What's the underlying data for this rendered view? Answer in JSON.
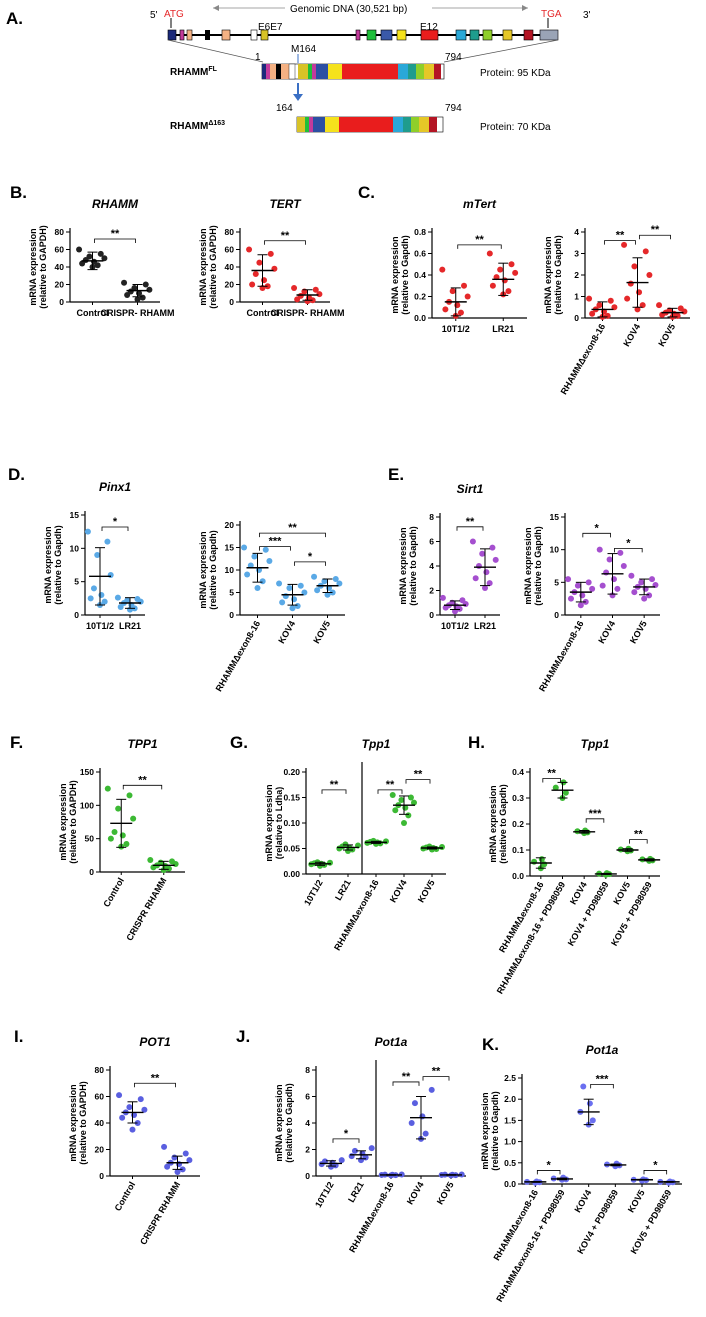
{
  "figure": {
    "panel_a": {
      "label": "A.",
      "five_prime": "5'",
      "three_prime": "3'",
      "start_codon": "ATG",
      "stop_codon": "TGA",
      "genomic_label": "Genomic DNA (30,521 bp)",
      "exon_labels": [
        "E6E7",
        "E12"
      ],
      "m164_label": "M164",
      "fl_name": "RHAMM",
      "fl_sup": "FL",
      "fl_start": "1",
      "fl_end": "794",
      "fl_protein": "Protein: 95 KDa",
      "d_name": "RHAMM",
      "d_sup": "Δ163",
      "d_start": "164",
      "d_end": "794",
      "d_protein": "Protein: 70 KDa",
      "colors": {
        "gene_line": "#000000",
        "arrow_blue": "#3a6fc4",
        "start_red": "#e5282a"
      }
    }
  },
  "chart_data": [
    {
      "id": "B1",
      "panel": "B.",
      "type": "scatter",
      "title": "RHAMM",
      "ylabel": "mRNA expression (relative to GAPDH)",
      "ylim": [
        0,
        80
      ],
      "yticks": [
        0,
        20,
        40,
        60,
        80
      ],
      "categories": [
        "Control",
        "CRISPR- RHAMM"
      ],
      "color": "#222222",
      "groups": [
        {
          "mean": 47,
          "sd": 10,
          "points": [
            40,
            42,
            44,
            46,
            48,
            50,
            52,
            55,
            60
          ]
        },
        {
          "mean": 13,
          "sd": 7,
          "points": [
            3,
            5,
            8,
            10,
            12,
            14,
            16,
            20,
            22
          ]
        }
      ],
      "brackets": [
        {
          "from": 0,
          "to": 1,
          "y": 72,
          "label": "**"
        }
      ]
    },
    {
      "id": "B2",
      "type": "scatter",
      "title": "TERT",
      "ylabel": "mRNA expression (relative to GAPDH)",
      "ylim": [
        0,
        80
      ],
      "yticks": [
        0,
        20,
        40,
        60,
        80
      ],
      "categories": [
        "Control",
        "CRISPR- RHAMM"
      ],
      "color": "#e5282a",
      "groups": [
        {
          "mean": 36,
          "sd": 18,
          "points": [
            16,
            18,
            20,
            25,
            32,
            38,
            45,
            55,
            60
          ]
        },
        {
          "mean": 8,
          "sd": 6,
          "points": [
            1,
            2,
            3,
            5,
            7,
            9,
            12,
            14,
            16
          ]
        }
      ],
      "brackets": [
        {
          "from": 0,
          "to": 1,
          "y": 70,
          "label": "**"
        }
      ]
    },
    {
      "id": "C1",
      "panel": "C.",
      "type": "scatter",
      "title": "mTert",
      "ylabel": "mRNA expression (relative to Gapdh)",
      "ylim": [
        0,
        0.8
      ],
      "yticks": [
        0.0,
        0.2,
        0.4,
        0.6,
        0.8
      ],
      "categories": [
        "10T1/2",
        "LR21"
      ],
      "color": "#e5282a",
      "groups": [
        {
          "mean": 0.15,
          "sd": 0.13,
          "points": [
            0.02,
            0.05,
            0.08,
            0.12,
            0.15,
            0.2,
            0.25,
            0.3,
            0.45
          ]
        },
        {
          "mean": 0.36,
          "sd": 0.15,
          "points": [
            0.22,
            0.25,
            0.3,
            0.35,
            0.38,
            0.42,
            0.45,
            0.5,
            0.6
          ]
        }
      ],
      "brackets": [
        {
          "from": 0,
          "to": 1,
          "y": 0.68,
          "label": "**"
        }
      ]
    },
    {
      "id": "C2",
      "type": "scatter",
      "ylabel": "mRNA expression (relative to Gapdh)",
      "ylim": [
        0,
        4
      ],
      "yticks": [
        0,
        1,
        2,
        3,
        4
      ],
      "categories": [
        "RHAMMΔexon8-16",
        "KOV4",
        "KOV5"
      ],
      "color": "#e5282a",
      "groups": [
        {
          "mean": 0.4,
          "sd": 0.35,
          "points": [
            0.05,
            0.1,
            0.2,
            0.3,
            0.4,
            0.5,
            0.6,
            0.8,
            0.9
          ]
        },
        {
          "mean": 1.65,
          "sd": 1.15,
          "points": [
            0.4,
            0.6,
            0.9,
            1.2,
            1.6,
            2.0,
            2.4,
            3.1,
            3.4
          ]
        },
        {
          "mean": 0.25,
          "sd": 0.2,
          "points": [
            0.05,
            0.1,
            0.15,
            0.2,
            0.25,
            0.3,
            0.35,
            0.45,
            0.6
          ]
        }
      ],
      "brackets": [
        {
          "from": 0,
          "to": 1,
          "y": 3.6,
          "label": "**"
        },
        {
          "from": 1,
          "to": 2,
          "y": 3.85,
          "label": "**"
        }
      ]
    },
    {
      "id": "D1",
      "panel": "D.",
      "type": "scatter",
      "title": "Pinx1",
      "ylabel": "mRNA expression (relative to Gapdh)",
      "ylim": [
        0,
        15
      ],
      "yticks": [
        0,
        5,
        10,
        15
      ],
      "categories": [
        "10T1/2",
        "LR21"
      ],
      "color": "#5aa9e6",
      "groups": [
        {
          "mean": 5.8,
          "sd": 4.3,
          "points": [
            1.5,
            2,
            2.5,
            3,
            4,
            6,
            9,
            11,
            12.5
          ]
        },
        {
          "mean": 1.8,
          "sd": 0.8,
          "points": [
            0.8,
            1,
            1.2,
            1.5,
            1.8,
            2,
            2.2,
            2.4,
            2.6
          ]
        }
      ],
      "brackets": [
        {
          "from": 0,
          "to": 1,
          "y": 13.2,
          "label": "*"
        }
      ]
    },
    {
      "id": "D2",
      "type": "scatter",
      "ylabel": "mRNA expression (relative to Gapdh)",
      "ylim": [
        0,
        20
      ],
      "yticks": [
        0,
        5,
        10,
        15,
        20
      ],
      "categories": [
        "RHAMMΔexon8-16",
        "KOV4",
        "KOV5"
      ],
      "color": "#5aa9e6",
      "groups": [
        {
          "mean": 10.5,
          "sd": 3.2,
          "points": [
            6,
            7.5,
            9,
            10,
            11,
            12,
            13,
            14.5,
            15
          ]
        },
        {
          "mean": 4.5,
          "sd": 2.3,
          "points": [
            1.5,
            2,
            2.8,
            3.5,
            4.2,
            5,
            6,
            6.5,
            7
          ]
        },
        {
          "mean": 6.5,
          "sd": 1.5,
          "points": [
            4.5,
            5,
            5.5,
            6,
            6.5,
            7,
            7.5,
            8,
            8.5
          ]
        }
      ],
      "brackets": [
        {
          "from": 0,
          "to": 1,
          "y": 15.2,
          "label": "***"
        },
        {
          "from": 1,
          "to": 2,
          "y": 11.8,
          "label": "*"
        },
        {
          "from": 0,
          "to": 2,
          "y": 18.2,
          "label": "**"
        }
      ]
    },
    {
      "id": "E1",
      "panel": "E.",
      "type": "scatter",
      "title": "Sirt1",
      "ylabel": "mRNA expression (relative to Gapdh)",
      "ylim": [
        0,
        8
      ],
      "yticks": [
        0,
        2,
        4,
        6,
        8
      ],
      "categories": [
        "10T1/2",
        "LR21"
      ],
      "color": "#a54fcf",
      "groups": [
        {
          "mean": 0.8,
          "sd": 0.35,
          "points": [
            0.3,
            0.5,
            0.6,
            0.7,
            0.8,
            0.9,
            1.0,
            1.2,
            1.4
          ]
        },
        {
          "mean": 3.9,
          "sd": 1.5,
          "points": [
            2.2,
            2.6,
            3.0,
            3.5,
            4.0,
            4.5,
            5.0,
            5.5,
            6.0
          ]
        }
      ],
      "brackets": [
        {
          "from": 0,
          "to": 1,
          "y": 7.2,
          "label": "**"
        }
      ]
    },
    {
      "id": "E2",
      "type": "scatter",
      "ylabel": "mRNA expression (relative to Gapdh)",
      "ylim": [
        0,
        15
      ],
      "yticks": [
        0,
        5,
        10,
        15
      ],
      "categories": [
        "RHAMMΔexon8-16",
        "KOV4",
        "KOV5"
      ],
      "color": "#a54fcf",
      "groups": [
        {
          "mean": 3.5,
          "sd": 1.5,
          "points": [
            1.5,
            2,
            2.5,
            3,
            3.5,
            4,
            4.5,
            5,
            5.5
          ]
        },
        {
          "mean": 6.3,
          "sd": 3.1,
          "points": [
            3,
            4,
            4.5,
            5.5,
            6.5,
            7.5,
            8.5,
            9.5,
            10
          ]
        },
        {
          "mean": 4.3,
          "sd": 1.2,
          "points": [
            2.5,
            3,
            3.5,
            4,
            4.3,
            4.6,
            5,
            5.5,
            6
          ]
        }
      ],
      "brackets": [
        {
          "from": 0,
          "to": 1,
          "y": 12.5,
          "label": "*"
        },
        {
          "from": 1,
          "to": 2,
          "y": 10.2,
          "label": "*"
        }
      ]
    },
    {
      "id": "F",
      "panel": "F.",
      "type": "scatter",
      "title": "TPP1",
      "ylabel": "mRNA expression (relative to GAPDH)",
      "ylim": [
        0,
        150
      ],
      "yticks": [
        0,
        50,
        100,
        150
      ],
      "categories": [
        "Control",
        "CRISPR RHAMM"
      ],
      "color": "#3cb934",
      "groups": [
        {
          "mean": 73,
          "sd": 36,
          "points": [
            38,
            42,
            50,
            55,
            60,
            80,
            95,
            115,
            125
          ]
        },
        {
          "mean": 10,
          "sd": 6,
          "points": [
            3,
            5,
            7,
            9,
            10,
            12,
            14,
            16,
            18
          ]
        }
      ],
      "brackets": [
        {
          "from": 0,
          "to": 1,
          "y": 130,
          "label": "**"
        }
      ]
    },
    {
      "id": "G",
      "panel": "G.",
      "type": "scatter",
      "title": "Tpp1",
      "ylabel": "mRNA expression (relative to Ldha)",
      "ylim": [
        0,
        0.2
      ],
      "yticks": [
        0.0,
        0.05,
        0.1,
        0.15,
        0.2
      ],
      "categories": [
        "10T1/2",
        "LR21",
        "RHAMMΔexon8-16",
        "KOV4",
        "KOV5"
      ],
      "divider_after": 1,
      "color": "#3cb934",
      "groups": [
        {
          "mean": 0.02,
          "sd": 0.003,
          "points": [
            0.016,
            0.018,
            0.019,
            0.02,
            0.021,
            0.022,
            0.023
          ]
        },
        {
          "mean": 0.052,
          "sd": 0.005,
          "points": [
            0.045,
            0.048,
            0.05,
            0.052,
            0.054,
            0.056,
            0.058
          ]
        },
        {
          "mean": 0.062,
          "sd": 0.002,
          "points": [
            0.059,
            0.06,
            0.061,
            0.062,
            0.063,
            0.064,
            0.065
          ]
        },
        {
          "mean": 0.135,
          "sd": 0.018,
          "points": [
            0.1,
            0.115,
            0.125,
            0.13,
            0.135,
            0.14,
            0.145,
            0.15,
            0.155
          ]
        },
        {
          "mean": 0.051,
          "sd": 0.002,
          "points": [
            0.048,
            0.049,
            0.05,
            0.051,
            0.052,
            0.053,
            0.054
          ]
        }
      ],
      "brackets": [
        {
          "from": 0,
          "to": 1,
          "y": 0.165,
          "label": "**"
        },
        {
          "from": 2,
          "to": 3,
          "y": 0.165,
          "label": "**"
        },
        {
          "from": 3,
          "to": 4,
          "y": 0.185,
          "label": "**"
        }
      ]
    },
    {
      "id": "H",
      "panel": "H.",
      "type": "scatter",
      "title": "Tpp1",
      "ylabel": "mRNA expression (relative to Gapdh)",
      "ylim": [
        0,
        0.4
      ],
      "yticks": [
        0.0,
        0.1,
        0.2,
        0.3,
        0.4
      ],
      "categories": [
        "RHAMMΔexon8-16",
        "RHAMMΔexon8-16 + PD98059",
        "KOV4",
        "KOV4 + PD98059",
        "KOV5",
        "KOV5 + PD98059"
      ],
      "color": "#3cb934",
      "groups": [
        {
          "mean": 0.05,
          "sd": 0.02,
          "points": [
            0.03,
            0.045,
            0.055,
            0.065
          ]
        },
        {
          "mean": 0.33,
          "sd": 0.03,
          "points": [
            0.3,
            0.32,
            0.34,
            0.36
          ]
        },
        {
          "mean": 0.17,
          "sd": 0.005,
          "points": [
            0.165,
            0.168,
            0.172,
            0.175
          ]
        },
        {
          "mean": 0.008,
          "sd": 0.002,
          "points": [
            0.005,
            0.007,
            0.009,
            0.011
          ]
        },
        {
          "mean": 0.1,
          "sd": 0.005,
          "points": [
            0.095,
            0.098,
            0.102,
            0.105
          ]
        },
        {
          "mean": 0.062,
          "sd": 0.004,
          "points": [
            0.058,
            0.06,
            0.064,
            0.066
          ]
        }
      ],
      "brackets": [
        {
          "from": 0,
          "to": 1,
          "y": 0.375,
          "label": "**"
        },
        {
          "from": 2,
          "to": 3,
          "y": 0.22,
          "label": "***"
        },
        {
          "from": 4,
          "to": 5,
          "y": 0.14,
          "label": "**"
        }
      ]
    },
    {
      "id": "I",
      "panel": "I.",
      "type": "scatter",
      "title": "POT1",
      "ylabel": "mRNA expression (relative to GAPDH)",
      "ylim": [
        0,
        80
      ],
      "yticks": [
        0,
        20,
        40,
        60,
        80
      ],
      "categories": [
        "Control",
        "CRISPR RHAMM"
      ],
      "color": "#5a5fe0",
      "groups": [
        {
          "mean": 48,
          "sd": 8,
          "points": [
            35,
            40,
            44,
            46,
            48,
            50,
            52,
            58,
            61
          ]
        },
        {
          "mean": 10,
          "sd": 5,
          "points": [
            3,
            5,
            7,
            9,
            10,
            12,
            14,
            17,
            22
          ]
        }
      ],
      "brackets": [
        {
          "from": 0,
          "to": 1,
          "y": 70,
          "label": "**"
        }
      ]
    },
    {
      "id": "J",
      "panel": "J.",
      "type": "scatter",
      "title": "Pot1a",
      "ylabel": "mRNA expression (relative to Gapdh)",
      "ylim": [
        0,
        8
      ],
      "yticks": [
        0,
        2,
        4,
        6,
        8
      ],
      "categories": [
        "10T1/2",
        "LR21",
        "RHAMMΔexon8-16",
        "KOV4",
        "KOV5"
      ],
      "divider_after": 1,
      "color": "#5a5fe0",
      "groups": [
        {
          "mean": 0.95,
          "sd": 0.2,
          "points": [
            0.7,
            0.8,
            0.9,
            1.0,
            1.1,
            1.2
          ]
        },
        {
          "mean": 1.6,
          "sd": 0.3,
          "points": [
            1.2,
            1.4,
            1.5,
            1.7,
            1.9,
            2.1
          ]
        },
        {
          "mean": 0.08,
          "sd": 0.02,
          "points": [
            0.05,
            0.07,
            0.08,
            0.09,
            0.1,
            0.11
          ]
        },
        {
          "mean": 4.4,
          "sd": 1.6,
          "points": [
            2.8,
            3.2,
            4.0,
            4.5,
            5.5,
            6.5
          ]
        },
        {
          "mean": 0.08,
          "sd": 0.02,
          "points": [
            0.05,
            0.07,
            0.08,
            0.09,
            0.1,
            0.11
          ]
        }
      ],
      "brackets": [
        {
          "from": 0,
          "to": 1,
          "y": 2.8,
          "label": "*"
        },
        {
          "from": 2,
          "to": 3,
          "y": 7.1,
          "label": "**"
        },
        {
          "from": 3,
          "to": 4,
          "y": 7.5,
          "label": "**"
        }
      ]
    },
    {
      "id": "K",
      "panel": "K.",
      "type": "scatter",
      "title": "Pot1a",
      "ylabel": "mRNA expression (relative to Gapdh)",
      "ylim": [
        0,
        2.5
      ],
      "yticks": [
        0.0,
        0.5,
        1.0,
        1.5,
        2.0,
        2.5
      ],
      "categories": [
        "RHAMMΔexon8-16",
        "RHAMMΔexon8-16 + PD98059",
        "KOV4",
        "KOV4 + PD98059",
        "KOV5",
        "KOV5 + PD98059"
      ],
      "color": "#6a6ff0",
      "groups": [
        {
          "mean": 0.05,
          "sd": 0.01,
          "points": [
            0.03,
            0.04,
            0.05,
            0.06
          ]
        },
        {
          "mean": 0.12,
          "sd": 0.02,
          "points": [
            0.1,
            0.11,
            0.13,
            0.15
          ]
        },
        {
          "mean": 1.7,
          "sd": 0.3,
          "points": [
            1.4,
            1.5,
            1.7,
            1.9,
            2.3
          ]
        },
        {
          "mean": 0.45,
          "sd": 0.02,
          "points": [
            0.42,
            0.44,
            0.46,
            0.48
          ]
        },
        {
          "mean": 0.1,
          "sd": 0.01,
          "points": [
            0.08,
            0.09,
            0.1,
            0.11
          ]
        },
        {
          "mean": 0.05,
          "sd": 0.01,
          "points": [
            0.03,
            0.04,
            0.05,
            0.06
          ]
        }
      ],
      "brackets": [
        {
          "from": 0,
          "to": 1,
          "y": 0.32,
          "label": "*"
        },
        {
          "from": 2,
          "to": 3,
          "y": 2.35,
          "label": "***"
        },
        {
          "from": 4,
          "to": 5,
          "y": 0.32,
          "label": "*"
        }
      ]
    }
  ]
}
